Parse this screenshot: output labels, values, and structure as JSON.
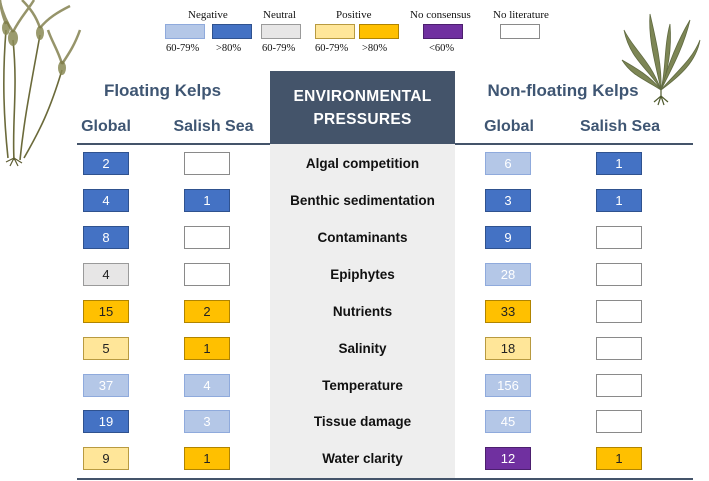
{
  "legend": {
    "negative": "Negative",
    "neutral": "Neutral",
    "positive": "Positive",
    "no_consensus": "No consensus",
    "no_literature": "No literature",
    "neg_mod": "60-79%",
    "neg_strong": ">80%",
    "neutral_range": "60-79%",
    "pos_mod": "60-79%",
    "pos_strong": ">80%",
    "nocons_range": "<60%"
  },
  "headers": {
    "floating": "Floating Kelps",
    "nonfloating": "Non-floating Kelps",
    "center_line1": "ENVIRONMENTAL",
    "center_line2": "PRESSURES",
    "global": "Global",
    "salish": "Salish Sea"
  },
  "colors": {
    "neg_strong": "#4472c4",
    "neg_mod": "#b4c7e7",
    "neutral": "#e7e6e6",
    "pos_mod": "#ffe699",
    "pos_strong": "#ffc000",
    "no_consensus": "#7030a0",
    "header": "#44546a"
  },
  "rows": [
    {
      "pressure": "Algal competition",
      "fg": "2",
      "fs": "",
      "ng": "6",
      "ns": "1"
    },
    {
      "pressure": "Benthic sedimentation",
      "fg": "4",
      "fs": "1",
      "ng": "3",
      "ns": "1"
    },
    {
      "pressure": "Contaminants",
      "fg": "8",
      "fs": "",
      "ng": "9",
      "ns": ""
    },
    {
      "pressure": "Epiphytes",
      "fg": "4",
      "fs": "",
      "ng": "28",
      "ns": ""
    },
    {
      "pressure": "Nutrients",
      "fg": "15",
      "fs": "2",
      "ng": "33",
      "ns": ""
    },
    {
      "pressure": "Salinity",
      "fg": "5",
      "fs": "1",
      "ng": "18",
      "ns": ""
    },
    {
      "pressure": "Temperature",
      "fg": "37",
      "fs": "4",
      "ng": "156",
      "ns": ""
    },
    {
      "pressure": "Tissue damage",
      "fg": "19",
      "fs": "3",
      "ng": "45",
      "ns": ""
    },
    {
      "pressure": "Water clarity",
      "fg": "9",
      "fs": "1",
      "ng": "12",
      "ns": "1"
    }
  ]
}
